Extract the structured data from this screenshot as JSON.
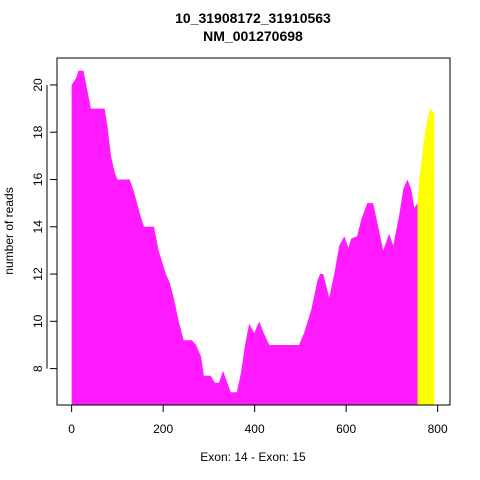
{
  "chart_data": {
    "type": "area",
    "title": "10_31908172_31910563",
    "subtitle": "NM_001270698",
    "xlabel": "Exon: 14 - Exon: 15",
    "ylabel": "number of reads",
    "xlim": [
      -32,
      827
    ],
    "ylim": [
      6.46,
      21.14
    ],
    "xticks": [
      0,
      200,
      400,
      600,
      800
    ],
    "yticks": [
      8,
      10,
      12,
      14,
      16,
      18,
      20
    ],
    "series": [
      {
        "color": "#ff1aff",
        "x": [
          0,
          10,
          15,
          26,
          32,
          38,
          42,
          72,
          78,
          86,
          94,
          100,
          127,
          136,
          150,
          158,
          180,
          190,
          206,
          215,
          223,
          234,
          245,
          263,
          272,
          283,
          289,
          304,
          313,
          322,
          331,
          344,
          348,
          361,
          370,
          379,
          388,
          399,
          410,
          420,
          432,
          497,
          508,
          524,
          537,
          543,
          550,
          563,
          574,
          585,
          596,
          605,
          611,
          624,
          633,
          646,
          659,
          670,
          681,
          694,
          703,
          716,
          725,
          734,
          742,
          749,
          756
        ],
        "values": [
          20,
          20.3,
          20.6,
          20.6,
          20,
          19.4,
          19,
          19,
          18.3,
          17,
          16.3,
          16,
          16,
          15.5,
          14.5,
          14,
          14,
          13,
          12,
          11.6,
          11,
          10,
          9.2,
          9.2,
          9,
          8.5,
          7.7,
          7.7,
          7.4,
          7.4,
          7.9,
          7.2,
          7,
          7,
          7.8,
          9,
          9.9,
          9.5,
          10,
          9.5,
          9,
          9,
          9.5,
          10.5,
          11.7,
          12,
          12,
          11,
          12,
          13.2,
          13.6,
          13.1,
          13.5,
          13.6,
          14.3,
          15,
          15,
          14,
          13,
          13.7,
          13.2,
          14.5,
          15.6,
          16,
          15.6,
          14.8,
          15
        ]
      },
      {
        "color": "#ffff00",
        "x": [
          756,
          760,
          769,
          778,
          784,
          793
        ],
        "values": [
          15,
          16,
          17.5,
          18.6,
          19,
          18.8
        ]
      }
    ]
  }
}
